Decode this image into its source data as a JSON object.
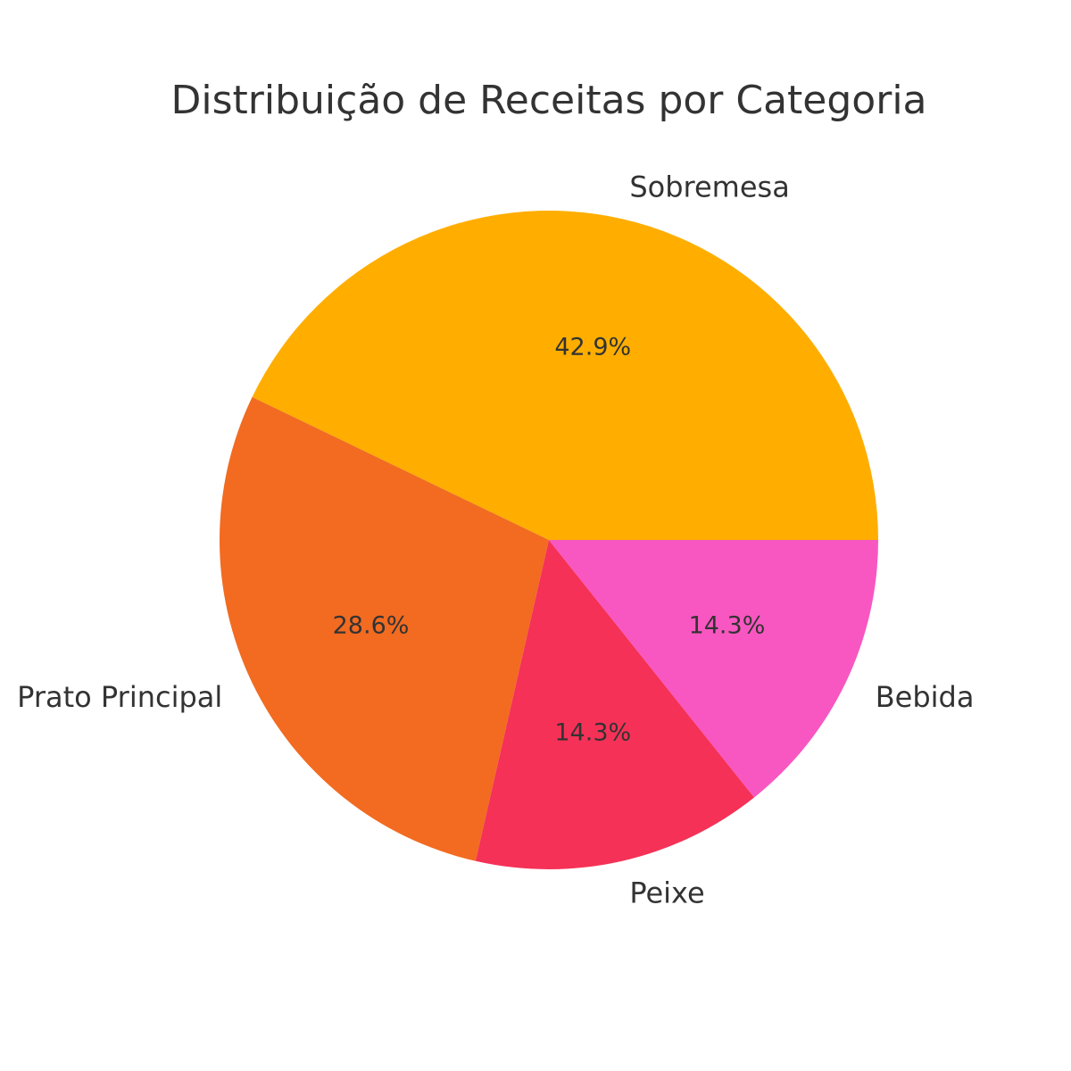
{
  "chart_data": {
    "type": "pie",
    "title": "Distribuição de Receitas por Categoria",
    "categories": [
      "Sobremesa",
      "Prato Principal",
      "Peixe",
      "Bebida"
    ],
    "values": [
      42.9,
      28.6,
      14.3,
      14.3
    ],
    "labels": [
      "42.9%",
      "28.6%",
      "14.3%",
      "14.3%"
    ],
    "colors": [
      "#FFAE00",
      "#F26B21",
      "#F53157",
      "#F857C1"
    ],
    "start_angle_deg": 0,
    "direction": "counterclockwise",
    "legend": "none"
  }
}
